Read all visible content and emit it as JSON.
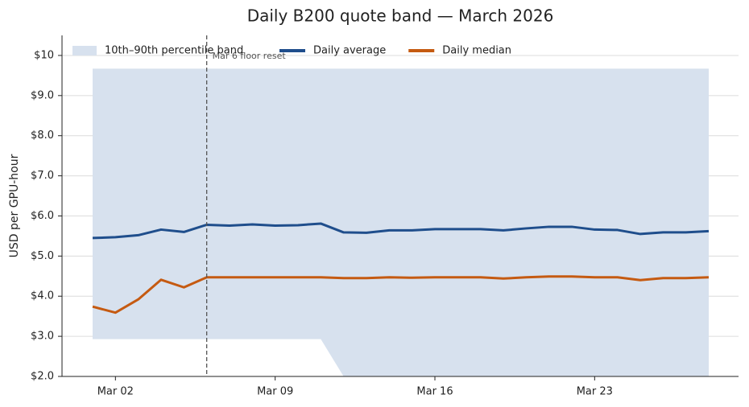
{
  "chart_data": {
    "type": "line",
    "title": "Daily B200 quote band — March 2026",
    "y_label": "USD per GPU-hour",
    "categories": [
      null,
      "Mar 02",
      null,
      null,
      null,
      null,
      null,
      null,
      "Mar 09",
      null,
      null,
      null,
      null,
      null,
      null,
      "Mar 16",
      null,
      null,
      null,
      null,
      null,
      null,
      "Mar 23",
      null,
      null,
      null,
      null,
      null
    ],
    "band": {
      "name": "10th–90th percentile band",
      "color": "#d7e1ee",
      "upper": [
        9.67,
        9.67,
        9.67,
        9.67,
        9.67,
        9.67,
        9.67,
        9.67,
        9.67,
        9.67,
        9.67,
        9.67,
        9.67,
        9.67,
        9.67,
        9.67,
        9.67,
        9.67,
        9.67,
        9.67,
        9.67,
        9.67,
        9.67,
        9.67,
        9.67,
        9.67,
        9.67,
        9.67
      ],
      "lower": [
        2.93,
        2.93,
        2.93,
        2.93,
        2.93,
        2.93,
        2.93,
        2.93,
        2.93,
        2.93,
        2.93,
        2.0,
        2.0,
        2.0,
        2.0,
        2.0,
        2.0,
        2.0,
        2.0,
        2.0,
        2.0,
        2.0,
        2.0,
        2.0,
        2.0,
        2.0,
        2.0,
        2.0
      ]
    },
    "series": [
      {
        "name": "Daily average",
        "color": "#1f4e8c",
        "values": [
          5.45,
          5.47,
          5.52,
          5.66,
          5.6,
          5.78,
          5.76,
          5.79,
          5.76,
          5.77,
          5.81,
          5.59,
          5.58,
          5.64,
          5.64,
          5.67,
          5.67,
          5.67,
          5.64,
          5.69,
          5.73,
          5.73,
          5.66,
          5.65,
          5.55,
          5.59,
          5.59,
          5.62
        ]
      },
      {
        "name": "Daily median",
        "color": "#c55a11",
        "values": [
          3.74,
          3.59,
          3.92,
          4.41,
          4.22,
          4.47,
          4.47,
          4.47,
          4.47,
          4.47,
          4.47,
          4.45,
          4.45,
          4.47,
          4.46,
          4.47,
          4.47,
          4.47,
          4.44,
          4.47,
          4.49,
          4.49,
          4.47,
          4.47,
          4.4,
          4.45,
          4.45,
          4.47
        ]
      }
    ],
    "annotation": {
      "text": "Mar 6 floor reset",
      "category_index": 5
    },
    "ylim": [
      2,
      10.5
    ],
    "yticks": [
      {
        "value": 2,
        "label": "$2.0"
      },
      {
        "value": 3,
        "label": "$3.0"
      },
      {
        "value": 4,
        "label": "$4.0"
      },
      {
        "value": 5,
        "label": "$5.0"
      },
      {
        "value": 6,
        "label": "$6.0"
      },
      {
        "value": 7,
        "label": "$7.0"
      },
      {
        "value": 8,
        "label": "$8.0"
      },
      {
        "value": 9,
        "label": "$9.0"
      },
      {
        "value": 10,
        "label": "$10"
      }
    ],
    "grid": true,
    "legend": "top-left"
  }
}
